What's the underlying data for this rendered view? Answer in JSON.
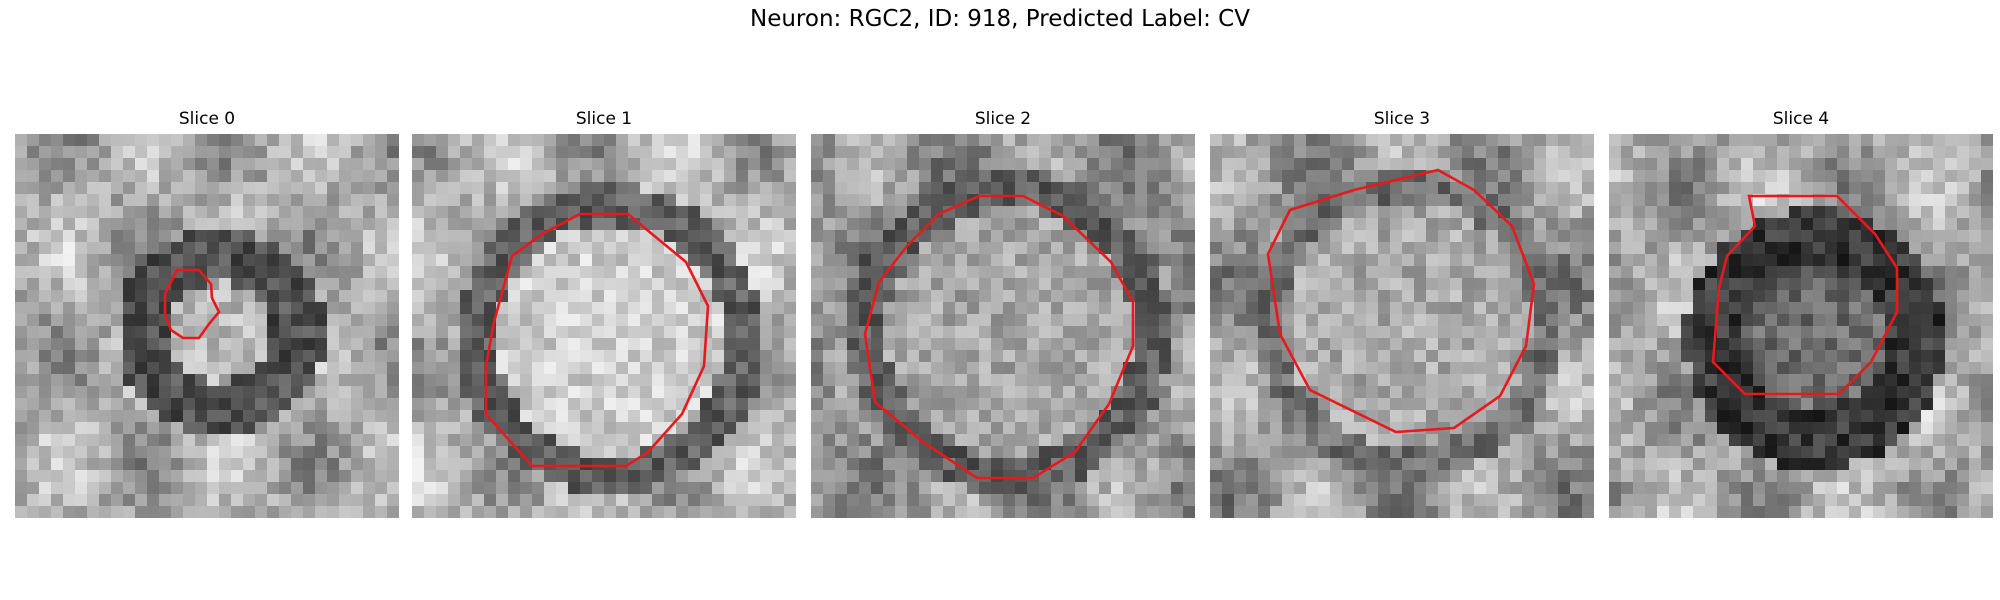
{
  "figure": {
    "title": "Neuron: RGC2, ID: 918, Predicted Label: CV"
  },
  "colors": {
    "contour": "#e8191c"
  },
  "panels": [
    {
      "label": "Slice 0"
    },
    {
      "label": "Slice 1"
    },
    {
      "label": "Slice 2"
    },
    {
      "label": "Slice 3"
    },
    {
      "label": "Slice 4"
    }
  ]
}
